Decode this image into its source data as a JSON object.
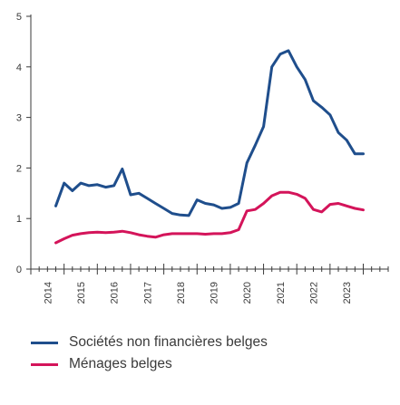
{
  "chart_data": {
    "type": "line",
    "title": "",
    "xlabel": "",
    "ylabel": "",
    "ylim": [
      0,
      5
    ],
    "yticks": [
      "0",
      "1",
      "2",
      "3",
      "4",
      "5"
    ],
    "xticks": [
      "2014",
      "2015",
      "2016",
      "2017",
      "2018",
      "2019",
      "2020",
      "2021",
      "2022",
      "2023"
    ],
    "xlim": [
      2014.0,
      2024.75
    ],
    "grid": false,
    "legend_position": "bottom-left",
    "series": [
      {
        "name": "Sociétés non financières belges",
        "color": "#1f4e8c",
        "x": [
          2014.75,
          2015.0,
          2015.25,
          2015.5,
          2015.75,
          2016.0,
          2016.25,
          2016.5,
          2016.75,
          2017.0,
          2017.25,
          2017.5,
          2017.75,
          2018.0,
          2018.25,
          2018.5,
          2018.75,
          2019.0,
          2019.25,
          2019.5,
          2019.75,
          2020.0,
          2020.25,
          2020.5,
          2020.75,
          2021.0,
          2021.25,
          2021.5,
          2021.75,
          2022.0,
          2022.25,
          2022.5,
          2022.75,
          2023.0,
          2023.25,
          2023.5,
          2023.75,
          2024.0
        ],
        "values": [
          1.25,
          1.7,
          1.55,
          1.7,
          1.65,
          1.67,
          1.62,
          1.65,
          1.98,
          1.47,
          1.5,
          1.4,
          1.3,
          1.2,
          1.1,
          1.07,
          1.06,
          1.37,
          1.3,
          1.27,
          1.2,
          1.22,
          1.3,
          2.1,
          2.45,
          2.82,
          4.0,
          4.25,
          4.32,
          4.0,
          3.75,
          3.33,
          3.2,
          3.05,
          2.7,
          2.55,
          2.28,
          2.28
        ]
      },
      {
        "name": "Ménages belges",
        "color": "#d4145a",
        "x": [
          2014.75,
          2015.0,
          2015.25,
          2015.5,
          2015.75,
          2016.0,
          2016.25,
          2016.5,
          2016.75,
          2017.0,
          2017.25,
          2017.5,
          2017.75,
          2018.0,
          2018.25,
          2018.5,
          2018.75,
          2019.0,
          2019.25,
          2019.5,
          2019.75,
          2020.0,
          2020.25,
          2020.5,
          2020.75,
          2021.0,
          2021.25,
          2021.5,
          2021.75,
          2022.0,
          2022.25,
          2022.5,
          2022.75,
          2023.0,
          2023.25,
          2023.5,
          2023.75,
          2024.0
        ],
        "values": [
          0.52,
          0.6,
          0.67,
          0.7,
          0.72,
          0.73,
          0.72,
          0.73,
          0.75,
          0.72,
          0.68,
          0.65,
          0.63,
          0.68,
          0.7,
          0.7,
          0.7,
          0.7,
          0.69,
          0.7,
          0.7,
          0.72,
          0.78,
          1.15,
          1.18,
          1.3,
          1.45,
          1.52,
          1.52,
          1.48,
          1.4,
          1.18,
          1.13,
          1.28,
          1.3,
          1.25,
          1.2,
          1.17
        ]
      }
    ]
  },
  "legend": {
    "items": [
      {
        "label": "Sociétés non financières belges",
        "color": "#1f4e8c"
      },
      {
        "label": "Ménages belges",
        "color": "#d4145a"
      }
    ]
  }
}
